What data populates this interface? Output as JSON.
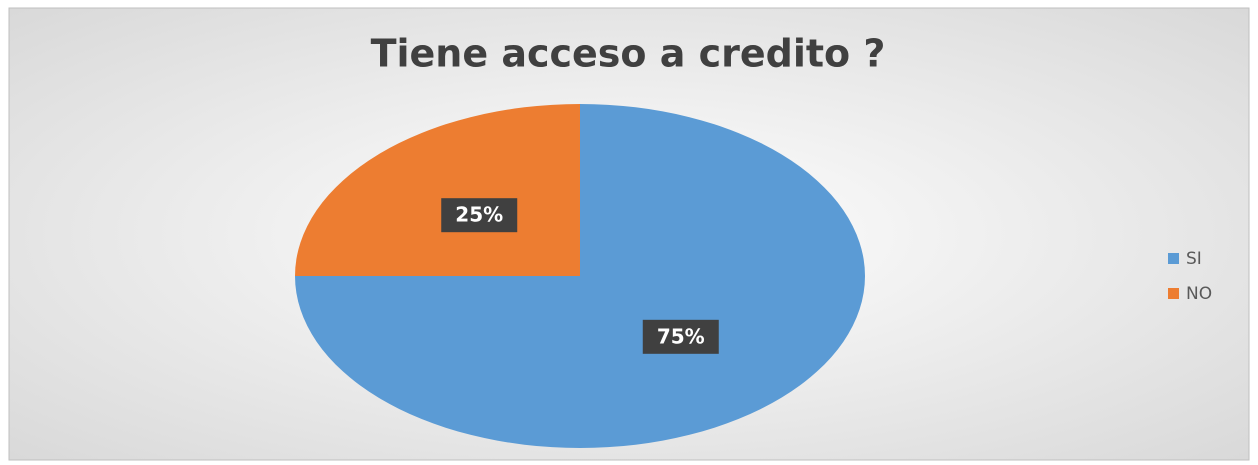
{
  "chart_data": {
    "type": "pie",
    "title": "Tiene acceso a credito ?",
    "categories": [
      "SI",
      "NO"
    ],
    "values": [
      75,
      25
    ],
    "value_labels": [
      "75%",
      "25%"
    ],
    "colors": [
      "#5b9bd5",
      "#ed7d31"
    ],
    "legend": "right"
  }
}
